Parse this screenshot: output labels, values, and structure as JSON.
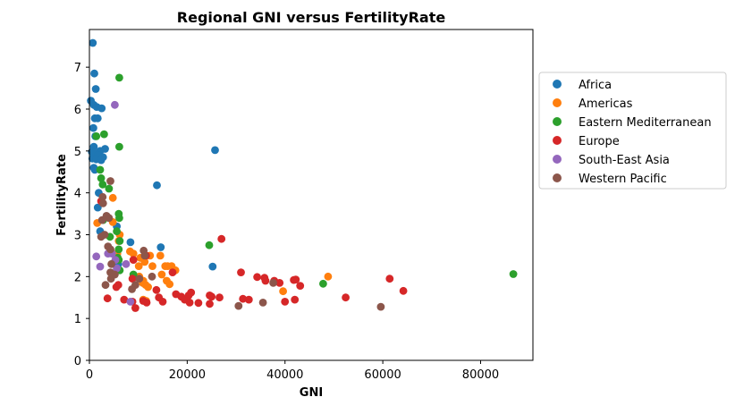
{
  "chart_data": {
    "type": "scatter",
    "title": "Regional GNI versus FertilityRate",
    "xlabel": "GNI",
    "ylabel": "FertilityRate",
    "xlim": [
      0,
      90700
    ],
    "ylim": [
      0,
      7.9
    ],
    "xticks": [
      0,
      20000,
      40000,
      60000,
      80000
    ],
    "yticks": [
      0,
      1,
      2,
      3,
      4,
      5,
      6,
      7
    ],
    "grid": false,
    "legend_position": "right",
    "series": [
      {
        "name": "Africa",
        "color": "#1f77b4",
        "points": [
          [
            700,
            7.58
          ],
          [
            1000,
            6.85
          ],
          [
            1300,
            6.48
          ],
          [
            300,
            6.2
          ],
          [
            900,
            6.1
          ],
          [
            1500,
            6.05
          ],
          [
            2500,
            6.02
          ],
          [
            1100,
            5.78
          ],
          [
            1700,
            5.78
          ],
          [
            800,
            5.55
          ],
          [
            1200,
            5.35
          ],
          [
            900,
            5.1
          ],
          [
            3200,
            5.05
          ],
          [
            2200,
            5.0
          ],
          [
            500,
            4.98
          ],
          [
            1000,
            4.95
          ],
          [
            1800,
            4.9
          ],
          [
            2800,
            4.85
          ],
          [
            600,
            4.82
          ],
          [
            1400,
            4.8
          ],
          [
            2400,
            4.78
          ],
          [
            900,
            4.6
          ],
          [
            1100,
            4.55
          ],
          [
            1900,
            4.0
          ],
          [
            1700,
            3.65
          ],
          [
            25700,
            5.02
          ],
          [
            13800,
            4.18
          ],
          [
            5600,
            3.2
          ],
          [
            2200,
            3.08
          ],
          [
            8400,
            2.82
          ],
          [
            14600,
            2.7
          ],
          [
            25200,
            2.24
          ],
          [
            5900,
            2.3
          ]
        ]
      },
      {
        "name": "Americas",
        "color": "#ff7f0e",
        "points": [
          [
            1600,
            3.28
          ],
          [
            4800,
            3.88
          ],
          [
            4800,
            3.3
          ],
          [
            6200,
            3.0
          ],
          [
            6000,
            2.85
          ],
          [
            4400,
            2.6
          ],
          [
            5700,
            2.55
          ],
          [
            8300,
            2.6
          ],
          [
            9000,
            2.55
          ],
          [
            10400,
            2.45
          ],
          [
            10100,
            2.25
          ],
          [
            11300,
            2.35
          ],
          [
            12400,
            2.5
          ],
          [
            12900,
            2.25
          ],
          [
            14500,
            2.5
          ],
          [
            15500,
            2.25
          ],
          [
            16000,
            2.25
          ],
          [
            16800,
            2.25
          ],
          [
            17600,
            2.15
          ],
          [
            14800,
            2.05
          ],
          [
            10200,
            2.0
          ],
          [
            11000,
            1.9
          ],
          [
            11500,
            1.8
          ],
          [
            10900,
            1.85
          ],
          [
            12000,
            1.75
          ],
          [
            15800,
            1.9
          ],
          [
            16400,
            1.82
          ],
          [
            11000,
            1.45
          ],
          [
            11600,
            1.42
          ],
          [
            48800,
            2.0
          ],
          [
            39600,
            1.65
          ]
        ]
      },
      {
        "name": "Eastern Mediterranean",
        "color": "#2ca02c",
        "points": [
          [
            3000,
            5.4
          ],
          [
            1400,
            5.35
          ],
          [
            6100,
            6.75
          ],
          [
            6100,
            5.1
          ],
          [
            2200,
            4.55
          ],
          [
            2400,
            4.35
          ],
          [
            2700,
            4.2
          ],
          [
            4000,
            4.1
          ],
          [
            2800,
            3.35
          ],
          [
            6000,
            3.5
          ],
          [
            6100,
            3.4
          ],
          [
            5600,
            3.08
          ],
          [
            4200,
            2.95
          ],
          [
            6200,
            2.85
          ],
          [
            6000,
            2.65
          ],
          [
            5800,
            2.45
          ],
          [
            6000,
            2.4
          ],
          [
            6200,
            2.15
          ],
          [
            9000,
            2.05
          ],
          [
            24500,
            2.75
          ],
          [
            47800,
            1.83
          ],
          [
            86700,
            2.06
          ]
        ]
      },
      {
        "name": "Europe",
        "color": "#d62728",
        "points": [
          [
            2400,
            3.8
          ],
          [
            5900,
            1.8
          ],
          [
            5500,
            1.75
          ],
          [
            3700,
            1.48
          ],
          [
            7100,
            1.45
          ],
          [
            8800,
            1.4
          ],
          [
            9400,
            1.25
          ],
          [
            8800,
            1.95
          ],
          [
            9000,
            2.4
          ],
          [
            11600,
            2.5
          ],
          [
            11000,
            1.42
          ],
          [
            11700,
            1.38
          ],
          [
            13700,
            1.68
          ],
          [
            14200,
            1.5
          ],
          [
            15000,
            1.4
          ],
          [
            17000,
            2.1
          ],
          [
            17700,
            1.58
          ],
          [
            18800,
            1.52
          ],
          [
            19500,
            1.45
          ],
          [
            20300,
            1.55
          ],
          [
            20800,
            1.62
          ],
          [
            20500,
            1.38
          ],
          [
            22300,
            1.37
          ],
          [
            24600,
            1.55
          ],
          [
            25000,
            1.52
          ],
          [
            24600,
            1.35
          ],
          [
            26600,
            1.5
          ],
          [
            27000,
            2.9
          ],
          [
            31000,
            2.1
          ],
          [
            31400,
            1.47
          ],
          [
            32600,
            1.45
          ],
          [
            34300,
            1.99
          ],
          [
            35800,
            1.97
          ],
          [
            36000,
            1.9
          ],
          [
            37800,
            1.9
          ],
          [
            38900,
            1.85
          ],
          [
            40000,
            1.4
          ],
          [
            41800,
            1.92
          ],
          [
            42200,
            1.93
          ],
          [
            43100,
            1.78
          ],
          [
            42000,
            1.45
          ],
          [
            52400,
            1.5
          ],
          [
            61400,
            1.95
          ],
          [
            64200,
            1.66
          ]
        ]
      },
      {
        "name": "South-East Asia",
        "color": "#9467bd",
        "points": [
          [
            5200,
            6.1
          ],
          [
            1400,
            2.48
          ],
          [
            2200,
            2.24
          ],
          [
            3800,
            2.55
          ],
          [
            4600,
            2.55
          ],
          [
            5300,
            2.4
          ],
          [
            5600,
            2.2
          ],
          [
            7500,
            2.3
          ],
          [
            8400,
            1.4
          ]
        ]
      },
      {
        "name": "Western Pacific",
        "color": "#8c564b",
        "points": [
          [
            4300,
            4.28
          ],
          [
            2700,
            3.9
          ],
          [
            2800,
            3.75
          ],
          [
            3500,
            3.45
          ],
          [
            4000,
            3.4
          ],
          [
            2600,
            3.35
          ],
          [
            3100,
            3.0
          ],
          [
            2400,
            2.95
          ],
          [
            3800,
            2.72
          ],
          [
            4300,
            2.65
          ],
          [
            4500,
            2.3
          ],
          [
            4300,
            2.1
          ],
          [
            5200,
            2.05
          ],
          [
            4400,
            1.95
          ],
          [
            3300,
            1.8
          ],
          [
            11100,
            2.62
          ],
          [
            11300,
            2.5
          ],
          [
            12800,
            2.0
          ],
          [
            10200,
            1.95
          ],
          [
            9400,
            1.8
          ],
          [
            8700,
            1.7
          ],
          [
            30500,
            1.3
          ],
          [
            35500,
            1.38
          ],
          [
            37600,
            1.85
          ],
          [
            59600,
            1.28
          ]
        ]
      }
    ]
  }
}
